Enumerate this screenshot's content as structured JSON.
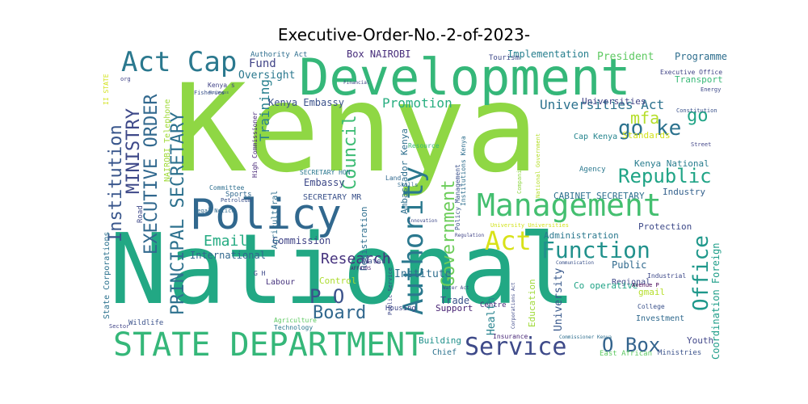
{
  "title": "Executive-Order-No.-2-of-2023-",
  "words": [
    {
      "text": "Kenya",
      "color": "#8fd744",
      "vertical": false
    },
    {
      "text": "National",
      "color": "#22a884",
      "vertical": false
    },
    {
      "text": "Development",
      "color": "#35b779",
      "vertical": false
    },
    {
      "text": "Policy",
      "color": "#31688e",
      "vertical": false
    },
    {
      "text": "STATE DEPARTMENT",
      "color": "#35b779",
      "vertical": false
    },
    {
      "text": "Management",
      "color": "#44bf70",
      "vertical": false
    },
    {
      "text": "Act Cap",
      "color": "#2a788e",
      "vertical": false
    },
    {
      "text": "Service",
      "color": "#3e4a89",
      "vertical": false
    },
    {
      "text": "Authority",
      "color": "#2a788e",
      "vertical": true
    },
    {
      "text": "Act",
      "color": "#d8e219",
      "vertical": false
    },
    {
      "text": "Function",
      "color": "#21918c",
      "vertical": false
    },
    {
      "text": "go ke",
      "color": "#2c728e",
      "vertical": false
    },
    {
      "text": "Republic",
      "color": "#20a486",
      "vertical": false
    },
    {
      "text": "P O",
      "color": "#3b528b",
      "vertical": false
    },
    {
      "text": "Board",
      "color": "#31688e",
      "vertical": false
    },
    {
      "text": "O Box",
      "color": "#33638d",
      "vertical": false
    },
    {
      "text": "Office",
      "color": "#1f988b",
      "vertical": true
    },
    {
      "text": "Council",
      "color": "#3dbc74",
      "vertical": true
    },
    {
      "text": "Government",
      "color": "#6ccd5a",
      "vertical": true
    },
    {
      "text": "Institution",
      "color": "#39568c",
      "vertical": true
    },
    {
      "text": "EXECUTIVE ORDER",
      "color": "#31688e",
      "vertical": true
    },
    {
      "text": "MINISTRY",
      "color": "#3e4989",
      "vertical": true
    },
    {
      "text": "PRINCIPAL SECRETARY",
      "color": "#2d718e",
      "vertical": true
    },
    {
      "text": "Email",
      "color": "#25ab82",
      "vertical": false
    },
    {
      "text": "Research",
      "color": "#46337e",
      "vertical": false
    },
    {
      "text": "Promotion",
      "color": "#28ae80",
      "vertical": false
    },
    {
      "text": "Universities Act",
      "color": "#2c728e",
      "vertical": false
    },
    {
      "text": "mfa",
      "color": "#b5de2b",
      "vertical": false
    },
    {
      "text": "go",
      "color": "#20a486",
      "vertical": false
    },
    {
      "text": "Training",
      "color": "#27808e",
      "vertical": true
    },
    {
      "text": "Fund",
      "color": "#414487",
      "vertical": false
    },
    {
      "text": "Oversight",
      "color": "#2a788e",
      "vertical": false
    },
    {
      "text": "Box NAIROBI",
      "color": "#472d7b",
      "vertical": false
    },
    {
      "text": "Implementation",
      "color": "#277f8e",
      "vertical": false
    },
    {
      "text": "President",
      "color": "#5ec962",
      "vertical": false
    },
    {
      "text": "Programme",
      "color": "#2e6e8e",
      "vertical": false
    },
    {
      "text": "Kenya Embassy",
      "color": "#3b528b",
      "vertical": false
    },
    {
      "text": "Kenya National",
      "color": "#287c8e",
      "vertical": false
    },
    {
      "text": "CABINET SECRETARY",
      "color": "#2d708e",
      "vertical": false
    },
    {
      "text": "SECRETARY MR",
      "color": "#3b528b",
      "vertical": false
    },
    {
      "text": "Embassy",
      "color": "#3e4989",
      "vertical": false
    },
    {
      "text": "International",
      "color": "#31688e",
      "vertical": false
    },
    {
      "text": "Commission",
      "color": "#414487",
      "vertical": false
    },
    {
      "text": "Control",
      "color": "#addc30",
      "vertical": false
    },
    {
      "text": "Institute",
      "color": "#2e6e8e",
      "vertical": false
    },
    {
      "text": "Trade",
      "color": "#3b528b",
      "vertical": false
    },
    {
      "text": "Support",
      "color": "#482374",
      "vertical": false
    },
    {
      "text": "Building",
      "color": "#21918c",
      "vertical": false
    },
    {
      "text": "Chief",
      "color": "#2c728e",
      "vertical": false
    },
    {
      "text": "Industry",
      "color": "#34618d",
      "vertical": false
    },
    {
      "text": "Protection",
      "color": "#3e4a89",
      "vertical": false
    },
    {
      "text": "Administration",
      "color": "#2a788e",
      "vertical": false
    },
    {
      "text": "Public",
      "color": "#306a8e",
      "vertical": false
    },
    {
      "text": "Regional",
      "color": "#3e4989",
      "vertical": false
    },
    {
      "text": "gmail",
      "color": "#b5de2b",
      "vertical": false
    },
    {
      "text": "Youth",
      "color": "#404688",
      "vertical": false
    },
    {
      "text": "Coordination Foreign",
      "color": "#1f9e89",
      "vertical": true
    },
    {
      "text": "Co operative",
      "color": "#20a386",
      "vertical": false
    },
    {
      "text": "University",
      "color": "#38588c",
      "vertical": true
    },
    {
      "text": "Education",
      "color": "#a0da39",
      "vertical": true
    },
    {
      "text": "Health",
      "color": "#26828e",
      "vertical": true
    },
    {
      "text": "Ambassador Kenya",
      "color": "#2e6f8e",
      "vertical": true
    },
    {
      "text": "Registration",
      "color": "#2e6e8e",
      "vertical": true
    },
    {
      "text": "Labour",
      "color": "#46337e",
      "vertical": false
    },
    {
      "text": "Transport",
      "color": "#38b977",
      "vertical": false
    },
    {
      "text": "Universities",
      "color": "#414487",
      "vertical": false
    },
    {
      "text": "Standards",
      "color": "#d2e21b",
      "vertical": false
    },
    {
      "text": "Cap Kenya",
      "color": "#25858e",
      "vertical": false
    },
    {
      "text": "Agency",
      "color": "#2a788e",
      "vertical": false
    },
    {
      "text": "Investment",
      "color": "#306a8e",
      "vertical": false
    },
    {
      "text": "Ministries",
      "color": "#3b528b",
      "vertical": false
    },
    {
      "text": "East African",
      "color": "#5ec962",
      "vertical": false
    },
    {
      "text": "State Corporations",
      "color": "#2c728e",
      "vertical": true
    },
    {
      "text": "Road",
      "color": "#3e4989",
      "vertical": true
    },
    {
      "text": "Agricultural",
      "color": "#2e6e8e",
      "vertical": true
    },
    {
      "text": "Sports",
      "color": "#31688e",
      "vertical": false
    },
    {
      "text": "Water",
      "color": "#3b528b",
      "vertical": false
    },
    {
      "text": "Housing",
      "color": "#3f4788",
      "vertical": false
    },
    {
      "text": "Centre",
      "color": "#482878",
      "vertical": false
    },
    {
      "text": "Industrial",
      "color": "#3e4989",
      "vertical": false
    },
    {
      "text": "College",
      "color": "#3b528b",
      "vertical": false
    },
    {
      "text": "Wildlife",
      "color": "#3b528b",
      "vertical": false
    },
    {
      "text": "Agriculture",
      "color": "#5ec962",
      "vertical": false
    },
    {
      "text": "Technology",
      "color": "#2a788e",
      "vertical": false
    },
    {
      "text": "Committee",
      "color": "#2e6e8e",
      "vertical": false
    },
    {
      "text": "NAIROBI Telephone",
      "color": "#a0da39",
      "vertical": true
    },
    {
      "text": "Authority Act",
      "color": "#2e6e8e",
      "vertical": false
    },
    {
      "text": "Tourism",
      "color": "#3e4989",
      "vertical": false
    },
    {
      "text": "Executive Office",
      "color": "#414487",
      "vertical": false
    },
    {
      "text": "Constitution",
      "color": "#3b528b",
      "vertical": false
    },
    {
      "text": "Street",
      "color": "#414487",
      "vertical": false
    },
    {
      "text": "Energy",
      "color": "#3e4989",
      "vertical": false
    },
    {
      "text": "Insurance",
      "color": "#482878",
      "vertical": false
    },
    {
      "text": "Petroleum",
      "color": "#3b528b",
      "vertical": false
    },
    {
      "text": "Legal Notice",
      "color": "#306a8e",
      "vertical": false
    },
    {
      "text": "High Commissioner",
      "color": "#482878",
      "vertical": true
    },
    {
      "text": "SECRETARY HON",
      "color": "#2a788e",
      "vertical": false
    },
    {
      "text": "Institutions Kenya",
      "color": "#2e6e8e",
      "vertical": true
    },
    {
      "text": "Policy Management",
      "color": "#3b528b",
      "vertical": true
    },
    {
      "text": "Land",
      "color": "#31688e",
      "vertical": false
    },
    {
      "text": "Skills",
      "color": "#306a8e",
      "vertical": false
    },
    {
      "text": "Resource",
      "color": "#38b977",
      "vertical": false
    },
    {
      "text": "Kenya s",
      "color": "#414487",
      "vertical": false
    },
    {
      "text": "Fisheries",
      "color": "#3b528b",
      "vertical": false
    },
    {
      "text": "Avenue P",
      "color": "#440154",
      "vertical": false
    },
    {
      "text": "Public Service",
      "color": "#3e4989",
      "vertical": true
    },
    {
      "text": "Regulation",
      "color": "#414487",
      "vertical": false
    },
    {
      "text": "Companies Act",
      "color": "#8fd744",
      "vertical": true
    },
    {
      "text": "Innovation",
      "color": "#3e4989",
      "vertical": false
    },
    {
      "text": "Communication",
      "color": "#3b528b",
      "vertical": false
    },
    {
      "text": "Water Act",
      "color": "#3e4989",
      "vertical": false
    },
    {
      "text": "Corporations Act",
      "color": "#3e4989",
      "vertical": true
    },
    {
      "text": "AFFAIRS",
      "color": "#482374",
      "vertical": false
    },
    {
      "text": "G H",
      "color": "#3e4989",
      "vertical": false
    },
    {
      "text": "Commissioner Kenya",
      "color": "#2e6e8e",
      "vertical": false
    },
    {
      "text": "Sector",
      "color": "#414487",
      "vertical": false
    },
    {
      "text": "II STATE",
      "color": "#d2e21b",
      "vertical": true
    },
    {
      "text": "Financial",
      "color": "#414487",
      "vertical": false
    },
    {
      "text": "org",
      "color": "#414487",
      "vertical": false
    },
    {
      "text": "Business",
      "color": "#3b528b",
      "vertical": false
    },
    {
      "text": "National Government",
      "color": "#b5de2b",
      "vertical": true
    },
    {
      "text": "University Universities",
      "color": "#d2e21b",
      "vertical": false
    }
  ]
}
